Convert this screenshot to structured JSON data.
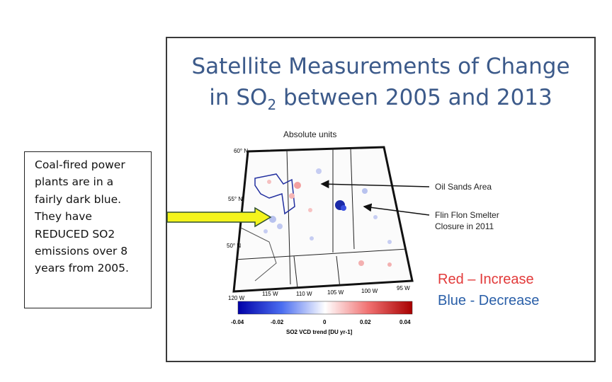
{
  "slide": {
    "title_line1": "Satellite Measurements of Change",
    "title_line2_pre": "in SO",
    "title_line2_sub": "2",
    "title_line2_post": " between 2005 and 2013",
    "map_caption": "Absolute units",
    "lat_labels": [
      "60° N",
      "55° N",
      "50° N"
    ],
    "lon_labels": [
      "120 W",
      "115 W",
      "110 W",
      "105 W",
      "100 W",
      "95 W"
    ],
    "annotations": {
      "oil_sands": "Oil Sands Area",
      "flin_flon_line1": "Flin Flon Smelter",
      "flin_flon_line2": "Closure in 2011"
    },
    "colorbar": {
      "ticks": [
        "-0.04",
        "-0.02",
        "0",
        "0.02",
        "0.04"
      ],
      "label": "SO2 VCD trend [DU yr-1]",
      "colors": {
        "low": "#0000a8",
        "mid": "#ffffff",
        "high": "#a80000"
      }
    },
    "legend": {
      "red_text": "Red – Increase",
      "blue_text": "Blue - Decrease",
      "red_color": "#e23a3a",
      "blue_color": "#2a5fa8"
    }
  },
  "note": {
    "text": "Coal-fired power\nplants are in a\nfairly dark blue.\nThey have\nREDUCED SO2\nemissions over 8\nyears from 2005."
  },
  "arrow": {
    "color": "#f4f41c"
  }
}
